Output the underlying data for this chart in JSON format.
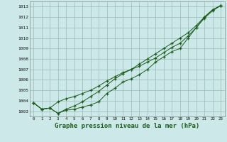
{
  "title": "Graphe pression niveau de la mer (hPa)",
  "background_color": "#cce8e8",
  "grid_color": "#99bbbb",
  "line_color": "#1a5c1a",
  "x_ticks": [
    0,
    1,
    2,
    3,
    4,
    5,
    6,
    7,
    8,
    9,
    10,
    11,
    12,
    13,
    14,
    15,
    16,
    17,
    18,
    19,
    20,
    21,
    22,
    23
  ],
  "ylim": [
    1002.5,
    1013.5
  ],
  "yticks": [
    1003,
    1004,
    1005,
    1006,
    1007,
    1008,
    1009,
    1010,
    1011,
    1012,
    1013
  ],
  "line1": [
    1003.8,
    1003.2,
    1003.3,
    1002.8,
    1003.1,
    1003.2,
    1003.4,
    1003.6,
    1003.9,
    1004.7,
    1005.2,
    1005.8,
    1006.1,
    1006.5,
    1007.0,
    1007.7,
    1008.2,
    1008.7,
    1009.0,
    1010.0,
    1011.0,
    1012.0,
    1012.7,
    1013.1
  ],
  "line2": [
    1003.8,
    1003.2,
    1003.3,
    1003.9,
    1004.2,
    1004.4,
    1004.7,
    1005.0,
    1005.4,
    1005.9,
    1006.3,
    1006.7,
    1007.0,
    1007.3,
    1007.7,
    1008.1,
    1008.6,
    1009.1,
    1009.5,
    1010.2,
    1011.0,
    1011.9,
    1012.6,
    1013.1
  ],
  "line3": [
    1003.8,
    1003.2,
    1003.3,
    1002.8,
    1003.2,
    1003.5,
    1003.9,
    1004.4,
    1004.9,
    1005.5,
    1006.1,
    1006.6,
    1007.0,
    1007.5,
    1008.0,
    1008.5,
    1009.0,
    1009.5,
    1010.0,
    1010.5,
    1011.2,
    1012.0,
    1012.7,
    1013.1
  ]
}
